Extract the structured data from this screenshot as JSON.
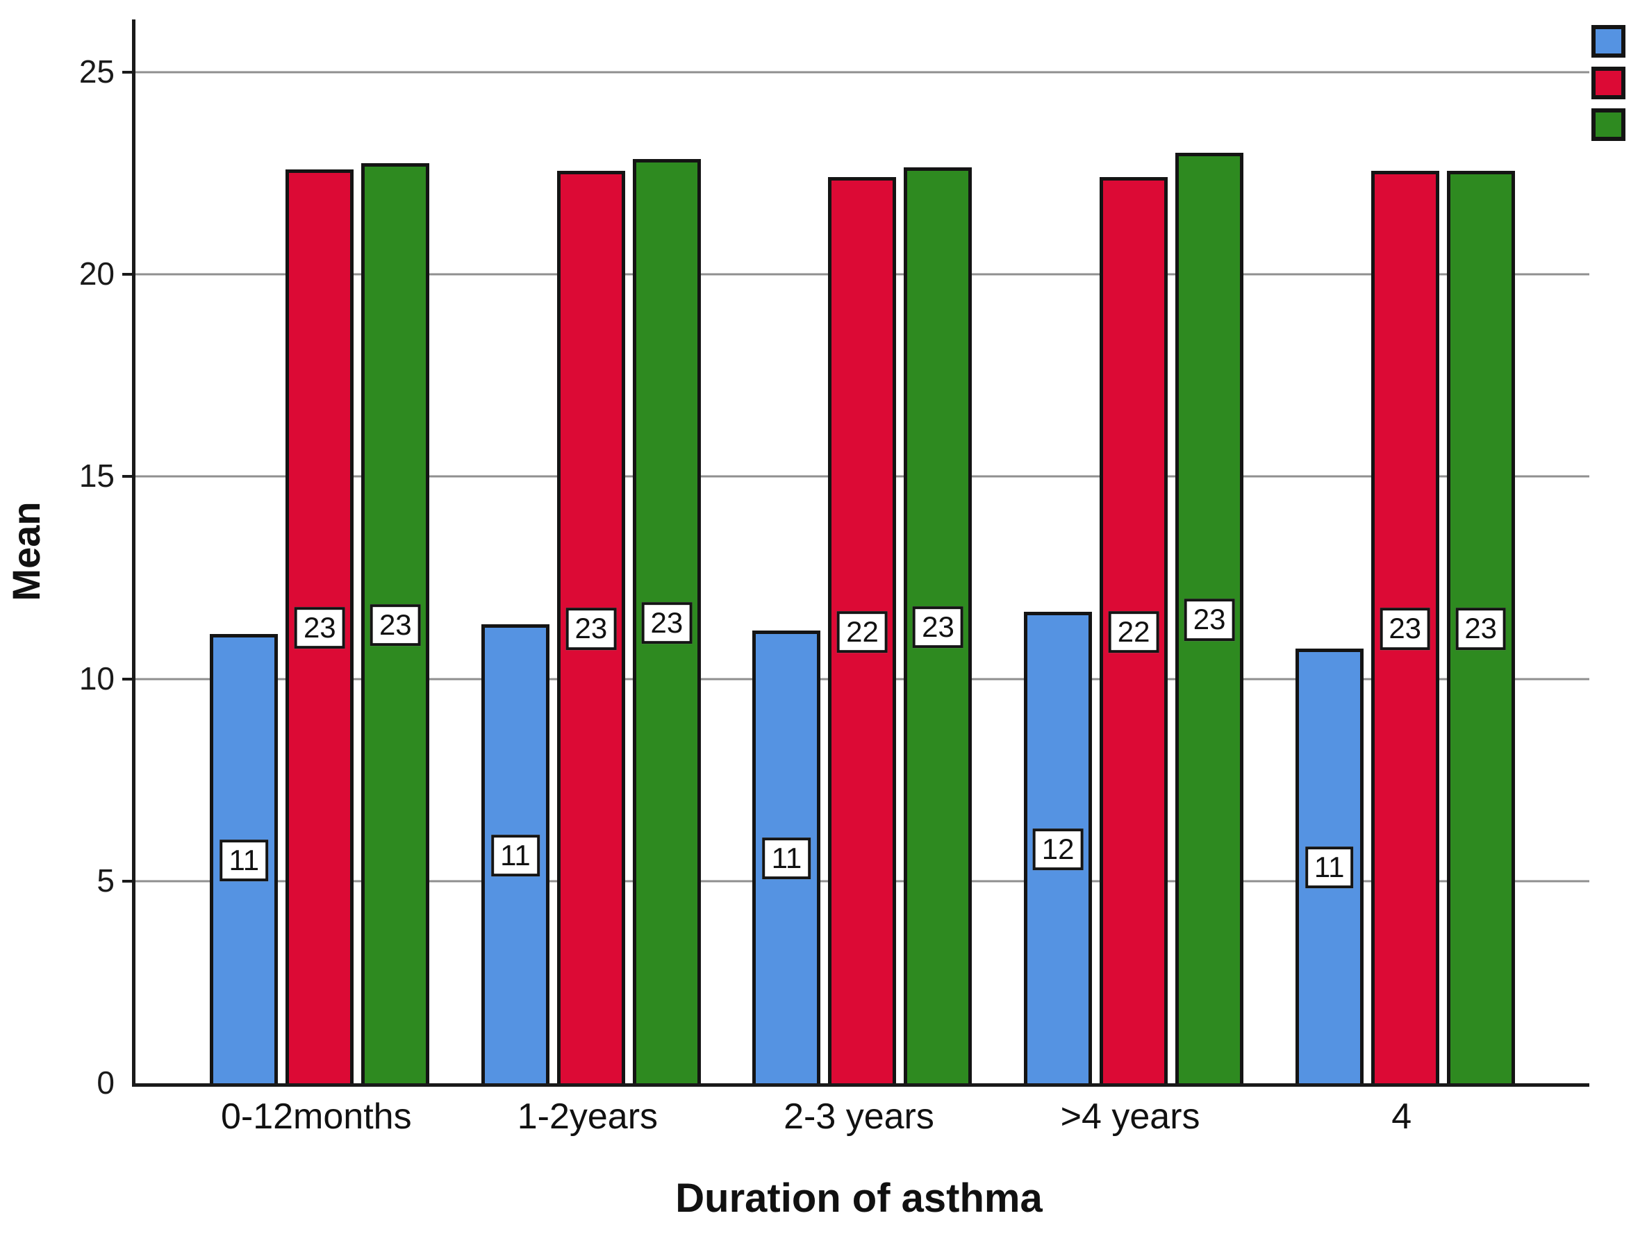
{
  "style": {
    "background": "#ffffff",
    "axis_color": "#1a1a1a",
    "grid_color": "#8f8f8f",
    "bar_border_color": "#141414",
    "label_box_bg": "#ffffff"
  },
  "legend": {
    "position": "top-right",
    "labels_visible": false,
    "swatch_colors": [
      "#5593e2",
      "#dc0a35",
      "#2e8a20"
    ]
  },
  "chart_data": {
    "type": "bar",
    "title": "",
    "xlabel": "Duration of asthma",
    "ylabel": "Mean",
    "categories": [
      "0-12months",
      "1-2years",
      "2-3 years",
      ">4 years",
      "4"
    ],
    "ylim": [
      0,
      26.3
    ],
    "yticks": [
      0,
      5,
      10,
      15,
      20,
      25
    ],
    "grid": true,
    "legend_position": "top-right (swatches only, labels cut off at image edge)",
    "series": [
      {
        "color_name": "blue",
        "color": "#5593e2",
        "values": [
          11.1,
          11.35,
          11.2,
          11.65,
          10.75
        ],
        "bar_labels": [
          "11",
          "11",
          "11",
          "12",
          "11"
        ]
      },
      {
        "color_name": "red",
        "color": "#dc0a35",
        "values": [
          22.6,
          22.55,
          22.4,
          22.4,
          22.55
        ],
        "bar_labels": [
          "23",
          "23",
          "22",
          "22",
          "23"
        ]
      },
      {
        "color_name": "green",
        "color": "#2e8a20",
        "values": [
          22.75,
          22.85,
          22.65,
          23.0,
          22.55
        ],
        "bar_labels": [
          "23",
          "23",
          "23",
          "23",
          "23"
        ]
      }
    ]
  }
}
